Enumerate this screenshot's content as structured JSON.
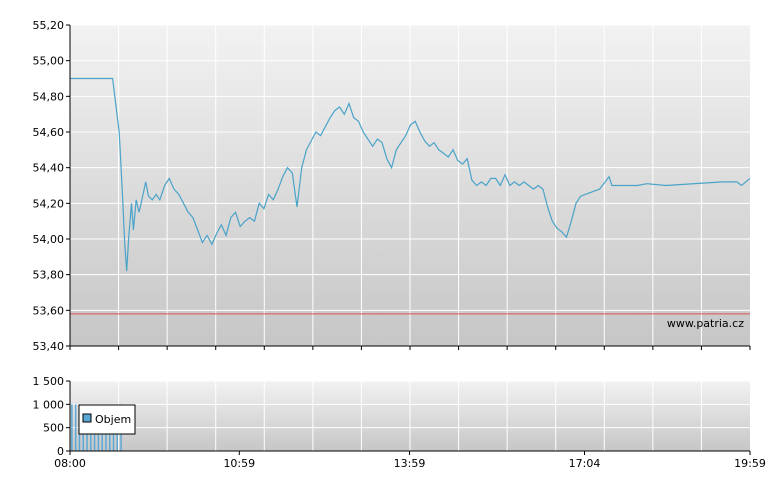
{
  "watermark": "www.patria.cz",
  "colors": {
    "price_line": "#4aa3c8",
    "reference_line": "#e05050",
    "volume_bar": "#5aa8d6",
    "grid": "#ffffff",
    "axis": "#000000",
    "bg_top": "#f2f2f2",
    "bg_bottom": "#c8c8c8"
  },
  "chart_data": [
    {
      "type": "line",
      "name": "price",
      "ylim": [
        53.4,
        55.2
      ],
      "yticks": [
        "55,20",
        "55,00",
        "54,80",
        "54,60",
        "54,40",
        "54,20",
        "54,00",
        "53,80",
        "53,60",
        "53,40"
      ],
      "reference_value": 53.58,
      "x_range": [
        "08:00",
        "19:59"
      ],
      "points": [
        [
          "08:00",
          54.9
        ],
        [
          "08:30",
          54.9
        ],
        [
          "08:45",
          54.9
        ],
        [
          "08:52",
          54.6
        ],
        [
          "08:55",
          54.3
        ],
        [
          "08:58",
          53.96
        ],
        [
          "09:00",
          53.82
        ],
        [
          "09:02",
          54.0
        ],
        [
          "09:05",
          54.2
        ],
        [
          "09:07",
          54.05
        ],
        [
          "09:10",
          54.22
        ],
        [
          "09:13",
          54.15
        ],
        [
          "09:16",
          54.22
        ],
        [
          "09:20",
          54.32
        ],
        [
          "09:23",
          54.24
        ],
        [
          "09:27",
          54.22
        ],
        [
          "09:31",
          54.25
        ],
        [
          "09:35",
          54.22
        ],
        [
          "09:40",
          54.3
        ],
        [
          "09:45",
          54.34
        ],
        [
          "09:50",
          54.28
        ],
        [
          "09:55",
          54.25
        ],
        [
          "10:00",
          54.2
        ],
        [
          "10:05",
          54.15
        ],
        [
          "10:10",
          54.12
        ],
        [
          "10:15",
          54.05
        ],
        [
          "10:20",
          53.98
        ],
        [
          "10:25",
          54.02
        ],
        [
          "10:30",
          53.97
        ],
        [
          "10:35",
          54.03
        ],
        [
          "10:40",
          54.08
        ],
        [
          "10:45",
          54.02
        ],
        [
          "10:50",
          54.12
        ],
        [
          "10:55",
          54.15
        ],
        [
          "11:00",
          54.07
        ],
        [
          "11:05",
          54.1
        ],
        [
          "11:10",
          54.12
        ],
        [
          "11:15",
          54.1
        ],
        [
          "11:20",
          54.2
        ],
        [
          "11:25",
          54.17
        ],
        [
          "11:30",
          54.25
        ],
        [
          "11:35",
          54.22
        ],
        [
          "11:40",
          54.28
        ],
        [
          "11:45",
          54.35
        ],
        [
          "11:50",
          54.4
        ],
        [
          "11:55",
          54.37
        ],
        [
          "12:00",
          54.18
        ],
        [
          "12:05",
          54.4
        ],
        [
          "12:10",
          54.5
        ],
        [
          "12:15",
          54.55
        ],
        [
          "12:20",
          54.6
        ],
        [
          "12:25",
          54.58
        ],
        [
          "12:30",
          54.63
        ],
        [
          "12:35",
          54.68
        ],
        [
          "12:40",
          54.72
        ],
        [
          "12:45",
          54.74
        ],
        [
          "12:50",
          54.7
        ],
        [
          "12:55",
          54.76
        ],
        [
          "13:00",
          54.68
        ],
        [
          "13:05",
          54.66
        ],
        [
          "13:10",
          54.6
        ],
        [
          "13:15",
          54.56
        ],
        [
          "13:20",
          54.52
        ],
        [
          "13:25",
          54.56
        ],
        [
          "13:30",
          54.54
        ],
        [
          "13:35",
          54.45
        ],
        [
          "13:40",
          54.4
        ],
        [
          "13:45",
          54.5
        ],
        [
          "13:50",
          54.54
        ],
        [
          "13:55",
          54.58
        ],
        [
          "14:00",
          54.64
        ],
        [
          "14:05",
          54.66
        ],
        [
          "14:10",
          54.6
        ],
        [
          "14:15",
          54.55
        ],
        [
          "14:20",
          54.52
        ],
        [
          "14:25",
          54.54
        ],
        [
          "14:30",
          54.5
        ],
        [
          "14:35",
          54.48
        ],
        [
          "14:40",
          54.46
        ],
        [
          "14:45",
          54.5
        ],
        [
          "14:50",
          54.44
        ],
        [
          "14:55",
          54.42
        ],
        [
          "15:00",
          54.45
        ],
        [
          "15:05",
          54.33
        ],
        [
          "15:10",
          54.3
        ],
        [
          "15:15",
          54.32
        ],
        [
          "15:20",
          54.3
        ],
        [
          "15:25",
          54.34
        ],
        [
          "15:30",
          54.34
        ],
        [
          "15:35",
          54.3
        ],
        [
          "15:40",
          54.36
        ],
        [
          "15:45",
          54.3
        ],
        [
          "15:50",
          54.32
        ],
        [
          "15:55",
          54.3
        ],
        [
          "16:00",
          54.32
        ],
        [
          "16:05",
          54.3
        ],
        [
          "16:10",
          54.28
        ],
        [
          "16:15",
          54.3
        ],
        [
          "16:20",
          54.28
        ],
        [
          "16:25",
          54.18
        ],
        [
          "16:30",
          54.1
        ],
        [
          "16:35",
          54.06
        ],
        [
          "16:40",
          54.04
        ],
        [
          "16:45",
          54.01
        ],
        [
          "16:50",
          54.1
        ],
        [
          "16:55",
          54.2
        ],
        [
          "17:00",
          54.24
        ],
        [
          "17:10",
          54.26
        ],
        [
          "17:20",
          54.28
        ],
        [
          "17:30",
          54.35
        ],
        [
          "17:33",
          54.3
        ],
        [
          "17:40",
          54.3
        ],
        [
          "18:00",
          54.3
        ],
        [
          "18:10",
          54.31
        ],
        [
          "18:30",
          54.3
        ],
        [
          "19:30",
          54.32
        ],
        [
          "19:45",
          54.32
        ],
        [
          "19:50",
          54.3
        ],
        [
          "19:59",
          54.34
        ]
      ]
    },
    {
      "type": "bar",
      "name": "volume",
      "ylim": [
        0,
        1500
      ],
      "yticks": [
        "1 500",
        "1 000",
        "500",
        "0"
      ],
      "x_ticks": [
        "08:00",
        "10:59",
        "13:59",
        "17:04",
        "19:59"
      ],
      "legend": "Objem",
      "legend_placement": "top-left",
      "bars": [
        [
          "08:02",
          1000
        ],
        [
          "08:06",
          1000
        ],
        [
          "08:10",
          1000
        ],
        [
          "08:14",
          1000
        ],
        [
          "08:18",
          1000
        ],
        [
          "08:22",
          1000
        ],
        [
          "08:26",
          1000
        ],
        [
          "08:30",
          1000
        ],
        [
          "08:34",
          1000
        ],
        [
          "08:38",
          1000
        ],
        [
          "08:42",
          1000
        ],
        [
          "08:46",
          1000
        ],
        [
          "08:50",
          1000
        ],
        [
          "08:54",
          1000
        ]
      ]
    }
  ]
}
